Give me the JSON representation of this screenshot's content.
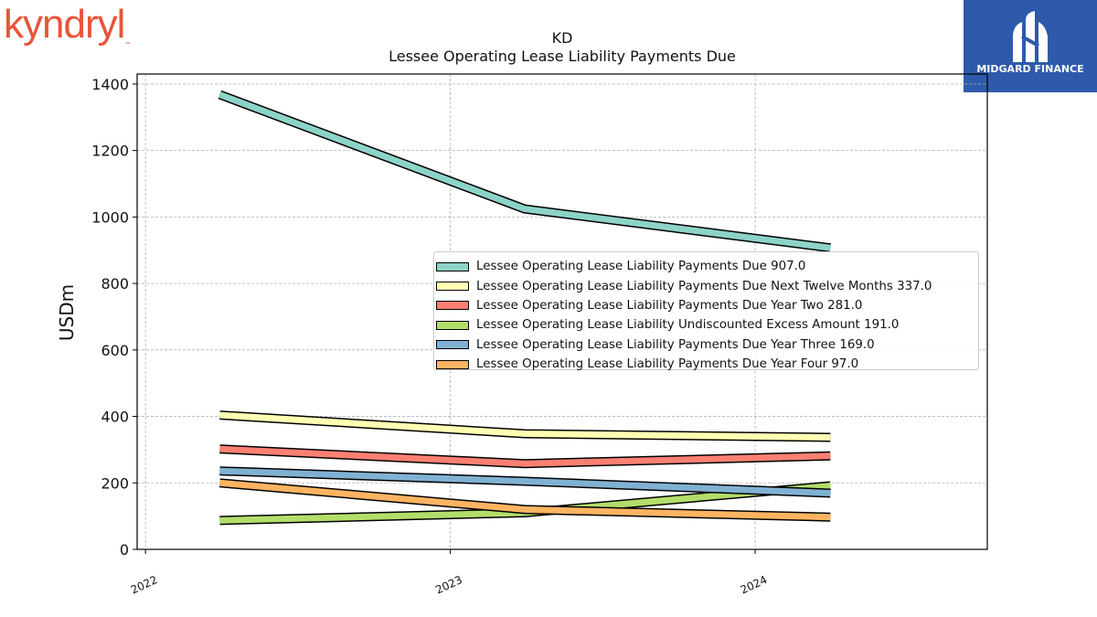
{
  "branding": {
    "left_logo_text": "kyndryl",
    "right_logo_text": "MIDGARD FINANCE"
  },
  "chart_data": {
    "type": "line",
    "title": "KD",
    "subtitle": "Lessee Operating Lease Liability Payments Due",
    "xlabel": "",
    "ylabel": "USDm",
    "x": [
      "2022-03-31",
      "2023-03-31",
      "2024-03-31"
    ],
    "x_ticks": [
      "2022",
      "2023",
      "2024"
    ],
    "ylim": [
      0,
      1430
    ],
    "y_ticks": [
      0,
      200,
      400,
      600,
      800,
      1000,
      1200,
      1400
    ],
    "grid": true,
    "legend_position": "center-right",
    "series": [
      {
        "name": "Lessee Operating Lease Liability Payments Due",
        "legend_label": "Lessee Operating Lease Liability Payments Due  907.0",
        "color": "#8dd3c7",
        "values": [
          1368,
          1024,
          907
        ]
      },
      {
        "name": "Lessee Operating Lease Liability Payments Due Next Twelve Months",
        "legend_label": "Lessee Operating Lease Liability Payments Due Next Twelve Months  337.0",
        "color": "#ffffb3",
        "values": [
          404,
          348,
          337
        ]
      },
      {
        "name": "Lessee Operating Lease Liability Payments Due Year Two",
        "legend_label": "Lessee Operating Lease Liability Payments Due Year Two  281.0",
        "color": "#fb8072",
        "values": [
          302,
          258,
          281
        ]
      },
      {
        "name": "Lessee Operating Lease Liability Undiscounted Excess Amount",
        "legend_label": "Lessee Operating Lease Liability Undiscounted Excess Amount  191.0",
        "color": "#b3de69",
        "values": [
          87,
          110,
          191
        ]
      },
      {
        "name": "Lessee Operating Lease Liability Payments Due Year Three",
        "legend_label": "Lessee Operating Lease Liability Payments Due Year Three  169.0",
        "color": "#80b1d3",
        "values": [
          236,
          205,
          169
        ]
      },
      {
        "name": "Lessee Operating Lease Liability Payments Due Year Four",
        "legend_label": "Lessee Operating Lease Liability Payments Due Year Four  97.0",
        "color": "#fdb462",
        "values": [
          200,
          120,
          97
        ]
      }
    ]
  }
}
